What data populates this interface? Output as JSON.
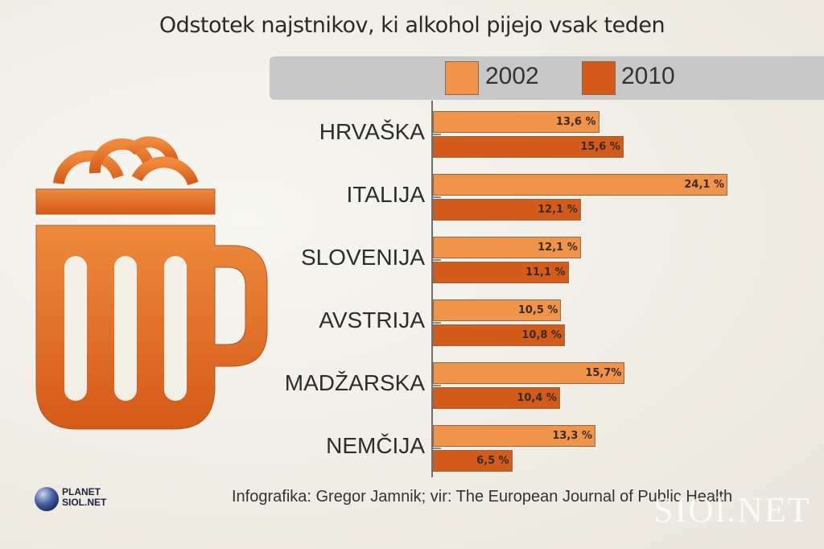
{
  "colors": {
    "c2002": "#f0944a",
    "c2010": "#d45c1a",
    "legend_bg": "#c9c8c8",
    "mug": "#e0702a"
  },
  "footer": {
    "source": "Infografika: Gregor Jamnik; vir: The European Journal of Public Health",
    "logo_line1": "PLANET",
    "logo_line2": "SIOL.NET",
    "watermark": "SIOl.NET"
  },
  "chart_data": {
    "type": "bar",
    "orientation": "horizontal",
    "title": "Odstotek najstnikov, ki alkohol pijejo vsak teden",
    "xlabel": "",
    "ylabel": "",
    "legend_position": "top",
    "grid": false,
    "xlim": [
      0,
      24.1
    ],
    "categories": [
      "HRVAŠKA",
      "ITALIJA",
      "SLOVENIJA",
      "AVSTRIJA",
      "MADŽARSKA",
      "NEMČIJA"
    ],
    "series": [
      {
        "name": "2002",
        "values": [
          13.6,
          24.1,
          12.1,
          10.5,
          15.7,
          13.3
        ],
        "labels": [
          "13,6 %",
          "24,1 %",
          "12,1 %",
          "10,5 %",
          "15,7%",
          "13,3 %"
        ]
      },
      {
        "name": "2010",
        "values": [
          15.6,
          12.1,
          11.1,
          10.8,
          10.4,
          6.5
        ],
        "labels": [
          "15,6 %",
          "12,1 %",
          "11,1 %",
          "10,8 %",
          "10,4 %",
          "6,5 %"
        ]
      }
    ]
  }
}
